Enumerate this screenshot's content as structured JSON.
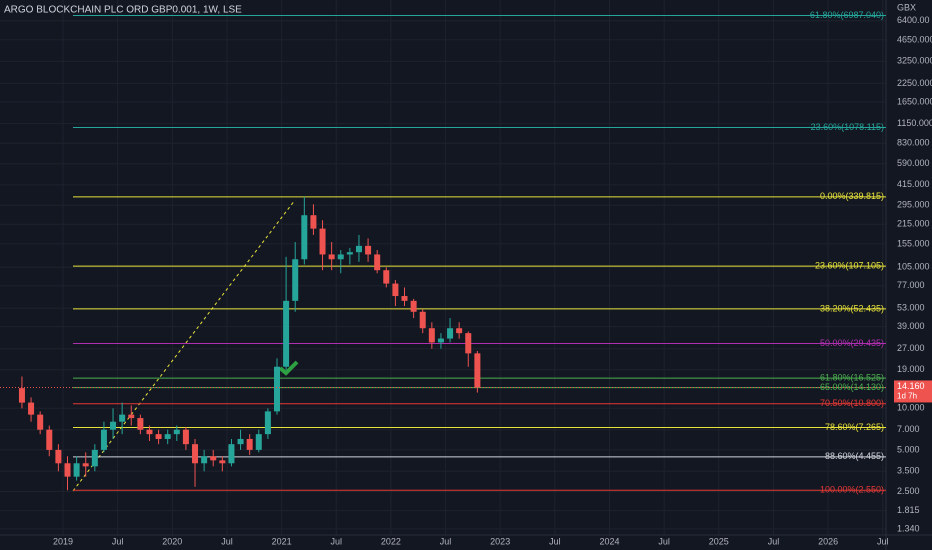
{
  "chart_data": {
    "type": "candlestick",
    "title": "ARGO BLOCKCHAIN PLC ORD GBP0.001, 1W, LSE",
    "y_unit": "GBX",
    "log_scale": true,
    "ylim": [
      1.21,
      9040
    ],
    "yticks": [
      {
        "value": 6400,
        "label": "6400.00"
      },
      {
        "value": 4650,
        "label": "4650.000"
      },
      {
        "value": 3250,
        "label": "3250.000"
      },
      {
        "value": 2250,
        "label": "2250.000"
      },
      {
        "value": 1650,
        "label": "1650.000"
      },
      {
        "value": 1150,
        "label": "1150.000"
      },
      {
        "value": 830,
        "label": "830.000"
      },
      {
        "value": 590,
        "label": "590.000"
      },
      {
        "value": 415,
        "label": "415.000"
      },
      {
        "value": 295,
        "label": "295.000"
      },
      {
        "value": 215,
        "label": "215.000"
      },
      {
        "value": 155,
        "label": "155.000"
      },
      {
        "value": 105,
        "label": "105.000"
      },
      {
        "value": 77,
        "label": "77.000"
      },
      {
        "value": 53,
        "label": "53.000"
      },
      {
        "value": 39,
        "label": "39.000"
      },
      {
        "value": 27,
        "label": "27.000"
      },
      {
        "value": 19,
        "label": "19.000"
      },
      {
        "value": 10,
        "label": "10.000"
      },
      {
        "value": 7,
        "label": "7.000"
      },
      {
        "value": 5,
        "label": "5.000"
      },
      {
        "value": 3.5,
        "label": "3.500"
      },
      {
        "value": 2.5,
        "label": "2.500"
      },
      1.815,
      {
        "value": 1.34,
        "label": "1.340"
      }
    ],
    "xticks": [
      {
        "value": "2019-01",
        "label": "2019"
      },
      {
        "value": "2019-07",
        "label": "Jul"
      },
      {
        "value": "2020-01",
        "label": "2020"
      },
      {
        "value": "2020-07",
        "label": "Jul"
      },
      {
        "value": "2021-01",
        "label": "2021"
      },
      {
        "value": "2021-07",
        "label": "Jul"
      },
      {
        "value": "2022-01",
        "label": "2022"
      },
      {
        "value": "2022-07",
        "label": "Jul"
      },
      {
        "value": "2023-01",
        "label": "2023"
      },
      {
        "value": "2023-07",
        "label": "Jul"
      },
      {
        "value": "2024-01",
        "label": "2024"
      },
      {
        "value": "2024-07",
        "label": "Jul"
      },
      {
        "value": "2025-01",
        "label": "2025"
      },
      {
        "value": "2025-07",
        "label": "Jul"
      },
      {
        "value": "2026-01",
        "label": "2026"
      },
      {
        "value": "2026-07",
        "label": "Jul"
      }
    ],
    "up_color": "#26a69a",
    "down_color": "#ef5350",
    "x": [
      "2018-08",
      "2018-09",
      "2018-10",
      "2018-11",
      "2018-12",
      "2019-01",
      "2019-02",
      "2019-03",
      "2019-04",
      "2019-05",
      "2019-06",
      "2019-07",
      "2019-08",
      "2019-09",
      "2019-10",
      "2019-11",
      "2019-12",
      "2020-01",
      "2020-02",
      "2020-03",
      "2020-04",
      "2020-05",
      "2020-06",
      "2020-07",
      "2020-08",
      "2020-09",
      "2020-10",
      "2020-11",
      "2020-12",
      "2021-01",
      "2021-02",
      "2021-03",
      "2021-04",
      "2021-05",
      "2021-06",
      "2021-07",
      "2021-08",
      "2021-09",
      "2021-10",
      "2021-11",
      "2021-12",
      "2022-01",
      "2022-02",
      "2022-03",
      "2022-04",
      "2022-05",
      "2022-06",
      "2022-07",
      "2022-08",
      "2022-09",
      "2022-10"
    ],
    "open": [
      14,
      11,
      9,
      7,
      5,
      4,
      3.2,
      4,
      3.8,
      5,
      7,
      8,
      9,
      8.5,
      7,
      6.5,
      6,
      6.5,
      7,
      5.5,
      4,
      4.5,
      4.2,
      4,
      5.5,
      6,
      5,
      6.5,
      9.5,
      20,
      60,
      120,
      250,
      200,
      130,
      120,
      130,
      135,
      150,
      130,
      100,
      80,
      65,
      60,
      50,
      38,
      30,
      32,
      38,
      35,
      25
    ],
    "high": [
      17,
      12,
      9.5,
      7.5,
      5.5,
      4.5,
      4.5,
      4.8,
      5.5,
      8,
      10,
      11,
      10.5,
      9,
      7.5,
      7,
      7,
      7.5,
      7.3,
      6,
      5,
      5,
      4.5,
      6,
      7,
      6.5,
      7,
      10,
      23,
      125,
      160,
      340,
      300,
      230,
      160,
      140,
      145,
      180,
      170,
      140,
      105,
      85,
      75,
      62,
      52,
      42,
      35,
      45,
      42,
      36,
      26
    ],
    "low": [
      10,
      8,
      6.5,
      4.5,
      3.5,
      2.55,
      3,
      3.2,
      3.5,
      4.8,
      6,
      6.5,
      7.5,
      6.5,
      5.8,
      5.5,
      5.5,
      5.8,
      5,
      2.7,
      3.5,
      3.8,
      3.5,
      3.8,
      5,
      4.6,
      4.8,
      6,
      9,
      19,
      50,
      110,
      180,
      100,
      100,
      95,
      110,
      115,
      115,
      95,
      75,
      55,
      55,
      45,
      35,
      27,
      27,
      30,
      32,
      20,
      13
    ],
    "close": [
      11,
      9,
      7,
      5,
      4,
      3.2,
      4,
      3.8,
      5,
      7,
      8,
      9,
      8.5,
      7,
      6.5,
      6,
      6.5,
      7,
      5.5,
      4,
      4.5,
      4.2,
      4,
      5.5,
      6,
      5,
      6.5,
      9.5,
      20,
      60,
      120,
      250,
      200,
      130,
      120,
      130,
      135,
      150,
      130,
      100,
      80,
      65,
      60,
      50,
      38,
      30,
      32,
      38,
      35,
      25,
      14.16
    ],
    "fib_levels": [
      {
        "label": "-61.80%(6987.040)",
        "value": 6987.04,
        "color": "#26a69a"
      },
      {
        "label": "-23.60%(1078.115)",
        "value": 1078.115,
        "color": "#26a69a"
      },
      {
        "label": "0.00%(339.815)",
        "value": 339.815,
        "color": "#e8e33a"
      },
      {
        "label": "23.60%(107.105)",
        "value": 107.105,
        "color": "#e8e33a"
      },
      {
        "label": "38.20%(52.435)",
        "value": 52.435,
        "color": "#e8e33a"
      },
      {
        "label": "50.00%(29.435)",
        "value": 29.435,
        "color": "#b02fb0"
      },
      {
        "label": "61.80%(16.525)",
        "value": 16.525,
        "color": "#4caf50"
      },
      {
        "label": "65.00%(14.130)",
        "value": 14.13,
        "color": "#4caf50"
      },
      {
        "label": "70.50%(10.800)",
        "value": 10.8,
        "color": "#e53935"
      },
      {
        "label": "78.60%(7.265)",
        "value": 7.265,
        "color": "#e8e33a"
      },
      {
        "label": "88.60%(4.455)",
        "value": 4.455,
        "color": "#d1d4dc"
      },
      {
        "label": "100.00%(2.550)",
        "value": 2.55,
        "color": "#e53935"
      }
    ],
    "last_price": {
      "value": 14.16,
      "label": "14.160"
    },
    "countdown": "1d 7h"
  }
}
